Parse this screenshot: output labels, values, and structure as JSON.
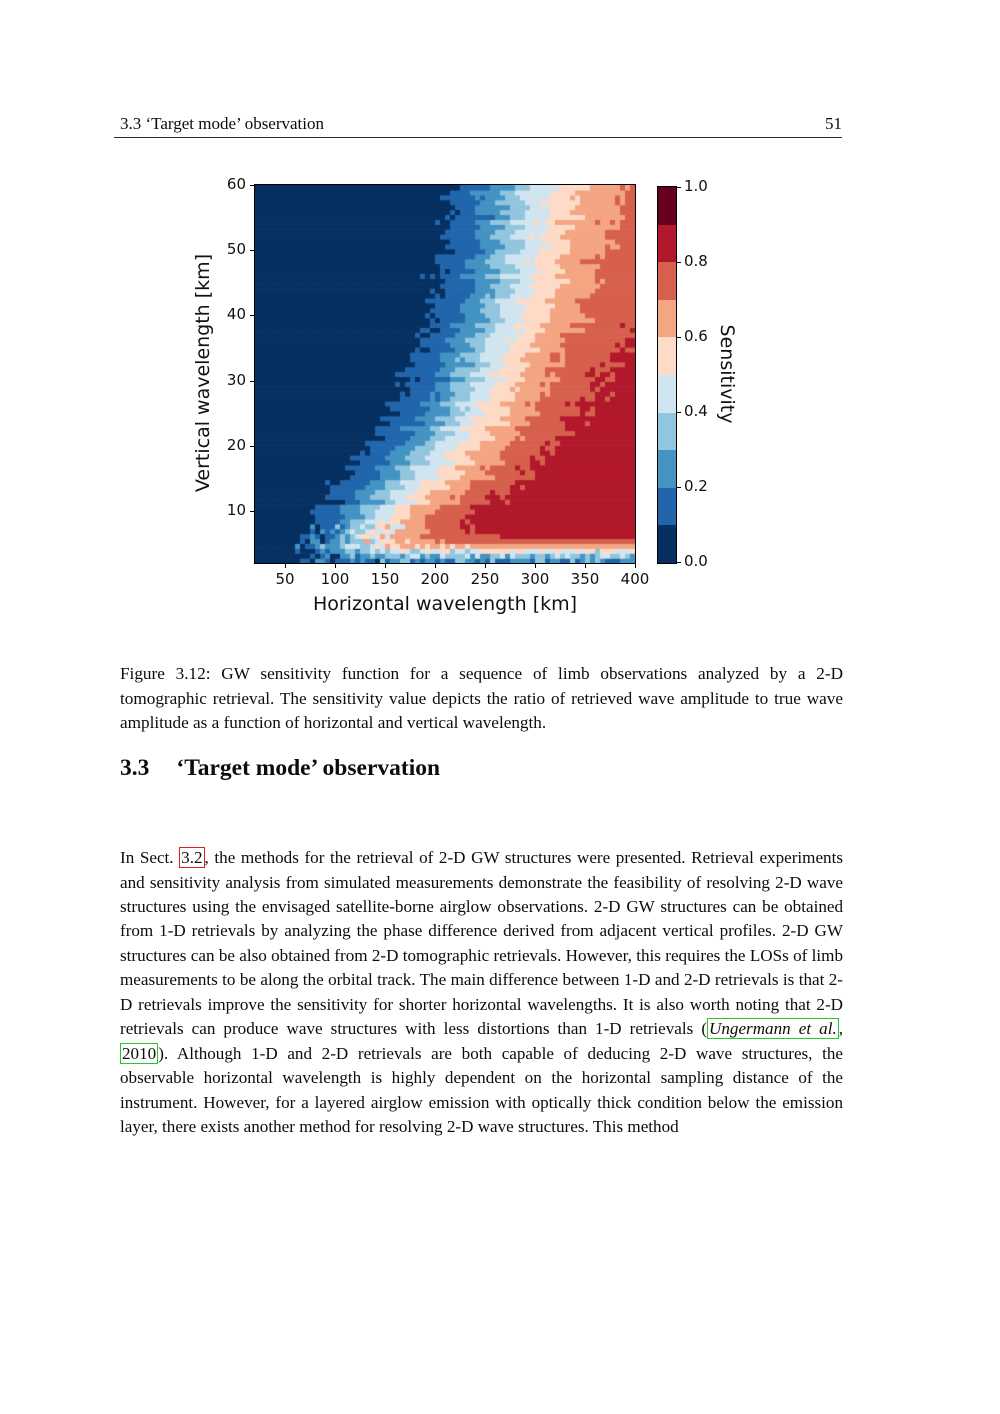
{
  "header": {
    "left": "3.3 ‘Target mode’ observation",
    "page_number": "51"
  },
  "figure": {
    "caption_prefix": "Figure 3.12:",
    "caption_text": " GW sensitivity function for a sequence of limb observations analyzed by a 2-D tomographic retrieval. The sensitivity value depicts the ratio of retrieved wave amplitude to true wave amplitude as a function of horizontal and vertical wavelength."
  },
  "section": {
    "number": "3.3",
    "title": "‘Target mode’ observation"
  },
  "paragraph": {
    "seg1": "In Sect. ",
    "ref1": "3.2",
    "seg2": ", the methods for the retrieval of 2-D GW structures were presented. Retrieval experiments and sensitivity analysis from simulated measurements demonstrate the feasibility of resolving 2-D wave structures using the envisaged satellite-borne airglow observations. 2-D GW structures can be obtained from 1-D retrievals by analyzing the phase difference derived from adjacent vertical profiles. 2-D GW structures can be also obtained from 2-D tomographic retrievals. However, this requires the LOSs of limb measurements to be along the orbital track. The main difference between 1-D and 2-D retrievals is that 2-D retrievals improve the sensitivity for shorter horizontal wavelengths. It is also worth noting that 2-D retrievals can produce wave structures with less distortions than 1-D retrievals (",
    "cite_author": "Ungermann et al.",
    "cite_sep": ", ",
    "cite_year": "2010",
    "seg3": "). Although 1-D and 2-D retrievals are both capable of deducing 2-D wave structures, the observable horizontal wavelength is highly dependent on the horizontal sampling distance of the instrument. However, for a layered airglow emission with optically thick condition below the emission layer, there exists another method for resolving 2-D wave structures. This method"
  },
  "chart_data": {
    "type": "heatmap",
    "title": "",
    "xlabel": "Horizontal wavelength [km]",
    "ylabel": "Vertical wavelength [km]",
    "colorbar_label": "Sensitivity",
    "x_range": [
      20,
      400
    ],
    "y_range": [
      2,
      60
    ],
    "xticks": [
      50,
      100,
      150,
      200,
      250,
      300,
      350,
      400
    ],
    "yticks": [
      10,
      20,
      30,
      40,
      50,
      60
    ],
    "colorbar_ticks": [
      {
        "value": 0.0,
        "label": "0.0"
      },
      {
        "value": 0.2,
        "label": "0.2"
      },
      {
        "value": 0.4,
        "label": "0.4"
      },
      {
        "value": 0.6,
        "label": "0.6"
      },
      {
        "value": 0.8,
        "label": "0.8"
      },
      {
        "value": 1.0,
        "label": "1.0"
      }
    ],
    "levels": [
      0,
      0.1,
      0.2,
      0.3,
      0.4,
      0.5,
      0.6,
      0.7,
      0.8,
      0.9,
      1.0
    ],
    "colors": [
      "#053061",
      "#2166ac",
      "#4393c3",
      "#92c5de",
      "#d1e5f0",
      "#fddbc7",
      "#f4a582",
      "#d6604d",
      "#b2182b",
      "#67001f"
    ],
    "grid": "off",
    "legend_position": "colorbar-right",
    "sensitivity_samples": {
      "x": [
        50,
        100,
        150,
        200,
        250,
        300,
        350,
        400
      ],
      "y": [
        5,
        10,
        20,
        30,
        40,
        50,
        60
      ],
      "values": [
        [
          0.05,
          0.3,
          0.5,
          0.6,
          0.65,
          0.7,
          0.7,
          0.7
        ],
        [
          0.02,
          0.1,
          0.45,
          0.7,
          0.8,
          0.85,
          0.85,
          0.85
        ],
        [
          0.0,
          0.05,
          0.25,
          0.5,
          0.7,
          0.8,
          0.85,
          0.85
        ],
        [
          0.0,
          0.05,
          0.15,
          0.35,
          0.55,
          0.7,
          0.78,
          0.82
        ],
        [
          0.0,
          0.02,
          0.1,
          0.3,
          0.45,
          0.6,
          0.7,
          0.78
        ],
        [
          0.0,
          0.0,
          0.08,
          0.25,
          0.4,
          0.55,
          0.65,
          0.72
        ],
        [
          0.0,
          0.0,
          0.05,
          0.2,
          0.35,
          0.5,
          0.6,
          0.7
        ]
      ]
    },
    "field_model": {
      "dx": 5,
      "dy": 0.75,
      "cAmp": 300,
      "cShift": 3.5,
      "cTau": 19.5,
      "wLeft": 36,
      "wRight": 48,
      "mBase": 0.885,
      "mSlope": 0.1,
      "mStart": 22,
      "mSpan": 38,
      "bCenter": 3.8,
      "bWidth": 1.0,
      "floor": 0.08,
      "noise": 0.05,
      "dither": 0.22
    }
  }
}
